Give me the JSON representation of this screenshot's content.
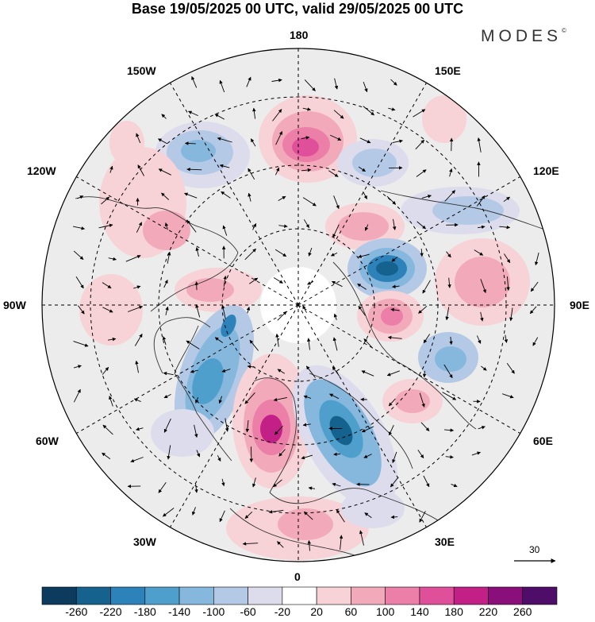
{
  "title": "Base 19/05/2025 00 UTC, valid 29/05/2025 00 UTC",
  "brand": {
    "name": "MODES",
    "mark": "©"
  },
  "longitude_labels": {
    "top": "180",
    "bottom": "0",
    "left": "90W",
    "right": "90E",
    "upper_left_1": "150W",
    "upper_left_2": "120W",
    "lower_left_1": "60W",
    "lower_left_2": "30W",
    "upper_right_1": "150E",
    "upper_right_2": "120E",
    "lower_right_1": "60E",
    "lower_right_2": "30E"
  },
  "reference_vector": {
    "label": "30"
  },
  "colorbar": {
    "labels": [
      "-260",
      "-220",
      "-180",
      "-140",
      "-100",
      "-60",
      "-20",
      "20",
      "60",
      "100",
      "140",
      "180",
      "220",
      "260"
    ],
    "colors": [
      "#0c3b5e",
      "#15628f",
      "#2c82b9",
      "#4f9fcd",
      "#86b7dd",
      "#b4c9e6",
      "#dcdcec",
      "#ffffff",
      "#f7d2d6",
      "#f2aabb",
      "#ec7fa8",
      "#e04f9a",
      "#c21f87",
      "#8b0f7a",
      "#4f0d6a"
    ]
  },
  "anomaly_centers": [
    {
      "name": "positive-anomaly-north-pacific",
      "sign": "positive",
      "value": 180
    },
    {
      "name": "positive-anomaly-north-atlantic",
      "sign": "positive",
      "value": 180
    },
    {
      "name": "negative-anomaly-scandinavia",
      "sign": "negative",
      "value": -220
    },
    {
      "name": "negative-anomaly-siberia",
      "sign": "negative",
      "value": -220
    },
    {
      "name": "negative-anomaly-labrador",
      "sign": "negative",
      "value": -180
    },
    {
      "name": "positive-anomaly-west-siberia",
      "sign": "positive",
      "value": 140
    },
    {
      "name": "negative-anomaly-alaska",
      "sign": "negative",
      "value": -140
    }
  ]
}
